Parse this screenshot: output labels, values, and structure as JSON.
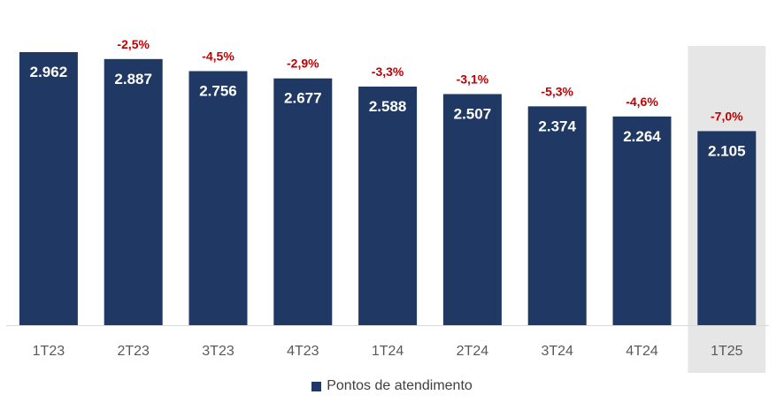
{
  "chart_data": {
    "type": "bar",
    "categories": [
      "1T23",
      "2T23",
      "3T23",
      "4T23",
      "1T24",
      "2T24",
      "3T24",
      "4T24",
      "1T25"
    ],
    "series": [
      {
        "name": "Pontos de atendimento",
        "values": [
          2962,
          2887,
          2756,
          2677,
          2588,
          2507,
          2374,
          2264,
          2105
        ]
      }
    ],
    "value_labels": [
      "2.962",
      "2.887",
      "2.756",
      "2.677",
      "2.588",
      "2.507",
      "2.374",
      "2.264",
      "2.105"
    ],
    "change_labels": [
      "",
      "-2,5%",
      "-4,5%",
      "-2,9%",
      "-3,3%",
      "-3,1%",
      "-5,3%",
      "-4,6%",
      "-7,0%"
    ],
    "highlight_category": "1T25",
    "ylim": [
      0,
      2962
    ],
    "legend_position": "bottom",
    "grid": false
  },
  "colors": {
    "bar": "#1f3864",
    "change_label": "#c00000",
    "value_label": "#ffffff",
    "axis_label": "#595959",
    "highlight": "#e6e6e6",
    "axis_line": "#d9d9d9"
  }
}
